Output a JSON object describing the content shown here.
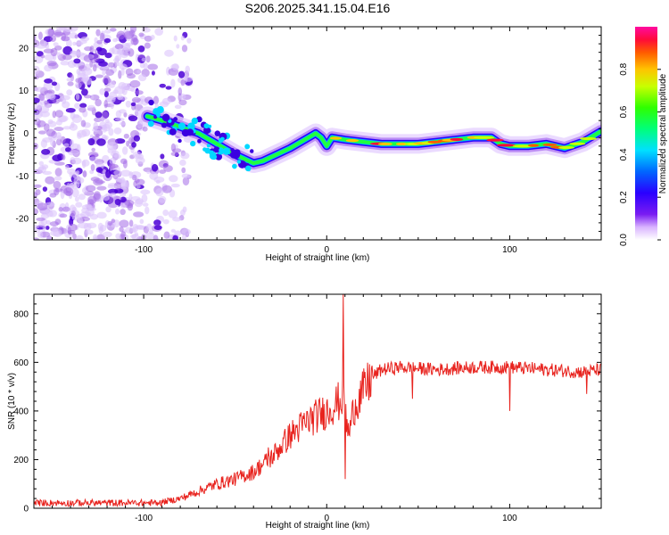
{
  "figure_title": "S206.2025.341.15.04.E16",
  "colors": {
    "snr_line": "#e8231e",
    "spec_dim": "#a46be8",
    "spec_dark": "#4b00d6",
    "colormap": [
      "#ffffff",
      "#d9b3ff",
      "#7a1cf2",
      "#2a00ff",
      "#0066ff",
      "#00e0ff",
      "#00ff7a",
      "#2eff00",
      "#c8ff00",
      "#ffc400",
      "#ff5a00",
      "#ff0a3a",
      "#ff0aa0"
    ]
  },
  "chart_data": [
    {
      "type": "heatmap",
      "title": "S206.2025.341.15.04.E16",
      "xlabel": "Height of straight line (km)",
      "ylabel": "Frequency (Hz)",
      "xlim": [
        -160,
        150
      ],
      "ylim": [
        -25,
        25
      ],
      "x_ticks": [
        -100,
        0,
        100
      ],
      "y_ticks": [
        -20,
        -10,
        0,
        10,
        20
      ],
      "colorbar": {
        "label": "Normalized spectral amplitude",
        "range": [
          0,
          1
        ],
        "ticks": [
          "0.0",
          "0.2",
          "0.4",
          "0.6",
          "0.8"
        ]
      },
      "ridge": {
        "x": [
          -98,
          -90,
          -80,
          -70,
          -60,
          -50,
          -40,
          -35,
          -30,
          -20,
          -12,
          -6,
          -3,
          0,
          3,
          10,
          20,
          30,
          40,
          50,
          60,
          70,
          80,
          90,
          95,
          100,
          110,
          120,
          130,
          140,
          150
        ],
        "y": [
          4,
          3,
          1.5,
          0,
          -2.5,
          -5,
          -7,
          -6.5,
          -5.5,
          -3.5,
          -1.5,
          0,
          -1,
          -3,
          -1,
          -1.5,
          -2,
          -2.5,
          -2.5,
          -2.5,
          -2,
          -1.5,
          -1,
          -1,
          -2.5,
          -3,
          -3,
          -2.5,
          -3.5,
          -2,
          0.5
        ]
      },
      "noise_region_x": [
        -160,
        -85
      ]
    },
    {
      "type": "line",
      "xlabel": "Height of straight line (km)",
      "ylabel": "SNR (10 * v/v)",
      "xlim": [
        -160,
        150
      ],
      "ylim": [
        0,
        880
      ],
      "x_ticks": [
        -100,
        0,
        100
      ],
      "y_ticks": [
        0,
        200,
        400,
        600,
        800
      ],
      "series": [
        {
          "trend_x": [
            -160,
            -120,
            -100,
            -90,
            -80,
            -70,
            -60,
            -50,
            -40,
            -30,
            -20,
            -10,
            0,
            5,
            9,
            12,
            15,
            20,
            25,
            30,
            40,
            60,
            80,
            100,
            120,
            140,
            150
          ],
          "trend_y": [
            20,
            20,
            20,
            25,
            40,
            70,
            100,
            120,
            150,
            210,
            300,
            360,
            400,
            430,
            450,
            300,
            420,
            480,
            540,
            570,
            580,
            570,
            580,
            580,
            570,
            560,
            570
          ],
          "spikes": [
            {
              "x": 9,
              "y": 880
            },
            {
              "x": 10,
              "y": 120
            },
            {
              "x": 100,
              "y": 650
            },
            {
              "x": 100,
              "y": 400
            },
            {
              "x": -32,
              "y": 250
            },
            {
              "x": 47,
              "y": 450
            },
            {
              "x": 142,
              "y": 470
            }
          ]
        }
      ]
    }
  ]
}
